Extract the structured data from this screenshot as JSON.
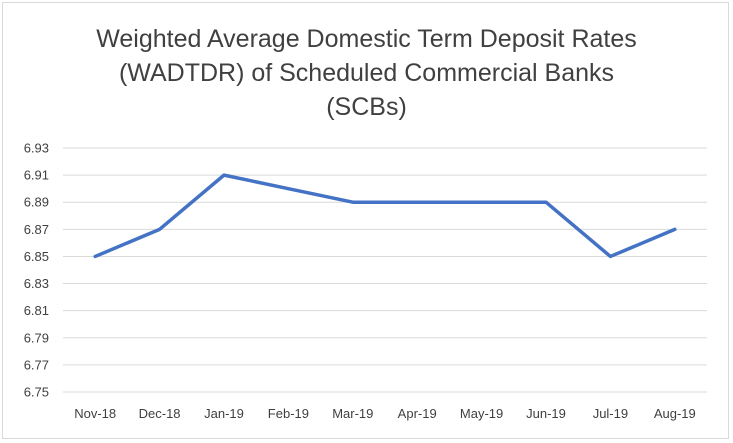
{
  "chart_data": {
    "type": "line",
    "title_lines": [
      "Weighted Average Domestic Term Deposit Rates",
      "(WADTDR) of Scheduled Commercial Banks",
      "(SCBs)"
    ],
    "categories": [
      "Nov-18",
      "Dec-18",
      "Jan-19",
      "Feb-19",
      "Mar-19",
      "Apr-19",
      "May-19",
      "Jun-19",
      "Jul-19",
      "Aug-19"
    ],
    "series": [
      {
        "values": [
          6.85,
          6.87,
          6.91,
          6.9,
          6.89,
          6.89,
          6.89,
          6.89,
          6.85,
          6.87
        ]
      }
    ],
    "ylim": [
      6.75,
      6.93
    ],
    "yticks": [
      "6.93",
      "6.91",
      "6.89",
      "6.87",
      "6.85",
      "6.83",
      "6.81",
      "6.79",
      "6.77",
      "6.75"
    ],
    "xlabel": "",
    "ylabel": "",
    "grid": true,
    "legend": "none",
    "colors": {
      "line": "#4472c4",
      "grid": "#d9d9d9",
      "text": "#404040"
    }
  }
}
